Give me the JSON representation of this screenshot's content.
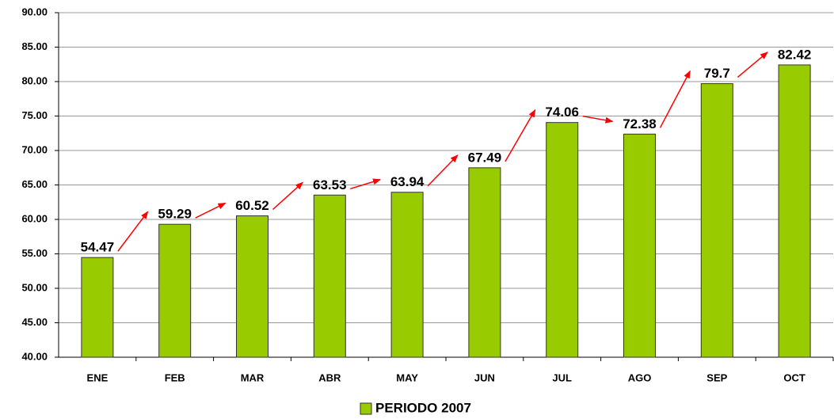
{
  "chart_data": {
    "type": "bar",
    "categories": [
      "ENE",
      "FEB",
      "MAR",
      "ABR",
      "MAY",
      "JUN",
      "JUL",
      "AGO",
      "SEP",
      "OCT"
    ],
    "series": [
      {
        "name": "PERIODO 2007",
        "color": "#99cc00",
        "values": [
          54.47,
          59.29,
          60.52,
          63.53,
          63.94,
          67.49,
          74.06,
          72.38,
          79.7,
          82.42
        ]
      }
    ],
    "ylim": [
      40,
      90
    ],
    "yticks": [
      {
        "value": 40,
        "label": "40.00"
      },
      {
        "value": 45,
        "label": "45.00"
      },
      {
        "value": 50,
        "label": "50.00"
      },
      {
        "value": 55,
        "label": "55.00"
      },
      {
        "value": 60,
        "label": "60.00"
      },
      {
        "value": 65,
        "label": "65.00"
      },
      {
        "value": 70,
        "label": "70.00"
      },
      {
        "value": 75,
        "label": "75.00"
      },
      {
        "value": 80,
        "label": "80.00"
      },
      {
        "value": 85,
        "label": "85.00"
      },
      {
        "value": 90,
        "label": "90.00"
      }
    ],
    "grid": true,
    "legend": "bottom"
  }
}
